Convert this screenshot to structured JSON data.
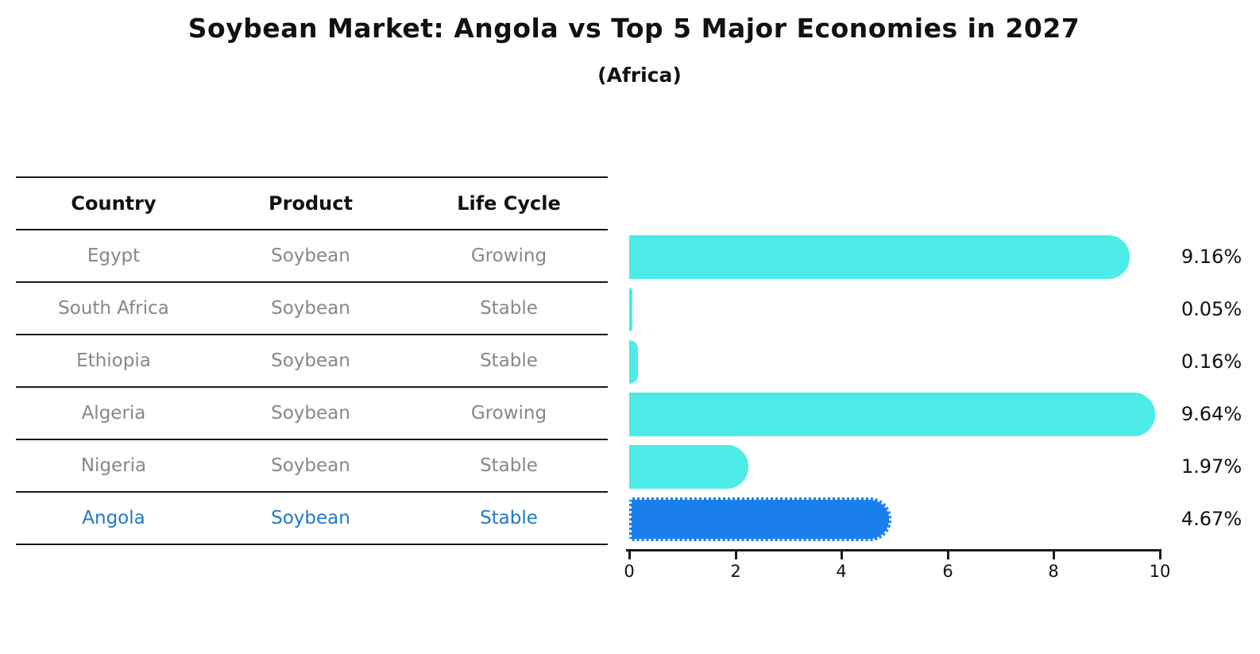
{
  "title": "Soybean Market: Angola vs Top 5 Major Economies in 2027",
  "subtitle": "(Africa)",
  "table": {
    "headers": {
      "country": "Country",
      "product": "Product",
      "life_cycle": "Life Cycle"
    },
    "rows": [
      {
        "country": "Egypt",
        "product": "Soybean",
        "life_cycle": "Growing",
        "highlight": false
      },
      {
        "country": "South Africa",
        "product": "Soybean",
        "life_cycle": "Stable",
        "highlight": false
      },
      {
        "country": "Ethiopia",
        "product": "Soybean",
        "life_cycle": "Stable",
        "highlight": false
      },
      {
        "country": "Algeria",
        "product": "Soybean",
        "life_cycle": "Growing",
        "highlight": false
      },
      {
        "country": "Nigeria",
        "product": "Soybean",
        "life_cycle": "Stable",
        "highlight": false
      },
      {
        "country": "Angola",
        "product": "Soybean",
        "life_cycle": "Stable",
        "highlight": true
      }
    ]
  },
  "chart_data": {
    "type": "bar",
    "orientation": "horizontal",
    "title": "Soybean Market: Angola vs Top 5 Major Economies in 2027",
    "subtitle": "(Africa)",
    "categories": [
      "Egypt",
      "South Africa",
      "Ethiopia",
      "Algeria",
      "Nigeria",
      "Angola"
    ],
    "values": [
      9.16,
      0.05,
      0.16,
      9.64,
      1.97,
      4.67
    ],
    "value_labels": [
      "9.16%",
      "0.05%",
      "0.16%",
      "9.64%",
      "1.97%",
      "4.67%"
    ],
    "xlabel": "",
    "ylabel": "",
    "xlim": [
      0,
      10
    ],
    "xticks": [
      "0",
      "2",
      "4",
      "6",
      "8",
      "10"
    ],
    "grid": false,
    "legend": false,
    "highlight_index": 5,
    "colors": {
      "bar": "#4DEBE8",
      "highlight_bar": "#1B7FEB",
      "highlight_text": "#1F78C8",
      "row_text": "#878787",
      "header_text": "#111111",
      "value_label_text": "#111111"
    }
  }
}
